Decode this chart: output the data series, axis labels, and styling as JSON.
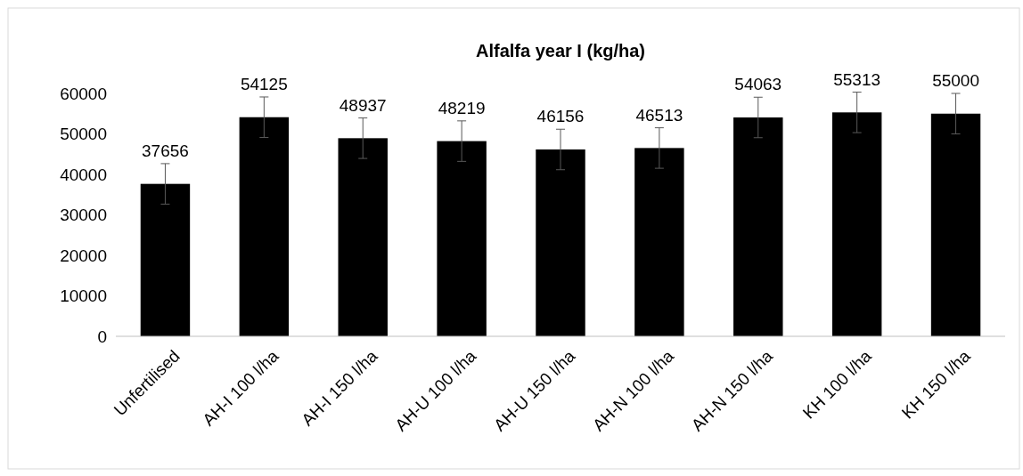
{
  "chart_data": {
    "type": "bar",
    "title": "Alfalfa year I (kg/ha)",
    "categories": [
      "Unfertilised",
      "AH-I 100 l/ha",
      "AH-I 150 l/ha",
      "AH-U 100 l/ha",
      "AH-U 150 l/ha",
      "AH-N 100 l/ha",
      "AH-N 150 l/ha",
      "KH 100 l/ha",
      "KH 150 l/ha"
    ],
    "values": [
      37656,
      54125,
      48937,
      48219,
      46156,
      46513,
      54063,
      55313,
      55000
    ],
    "errors": [
      5000,
      5000,
      5000,
      5000,
      5000,
      5000,
      5000,
      5000,
      5000
    ],
    "color": "#000000",
    "ylim": [
      0,
      60000
    ],
    "yticks": [
      0,
      10000,
      20000,
      30000,
      40000,
      50000,
      60000
    ],
    "data_labels": true
  }
}
